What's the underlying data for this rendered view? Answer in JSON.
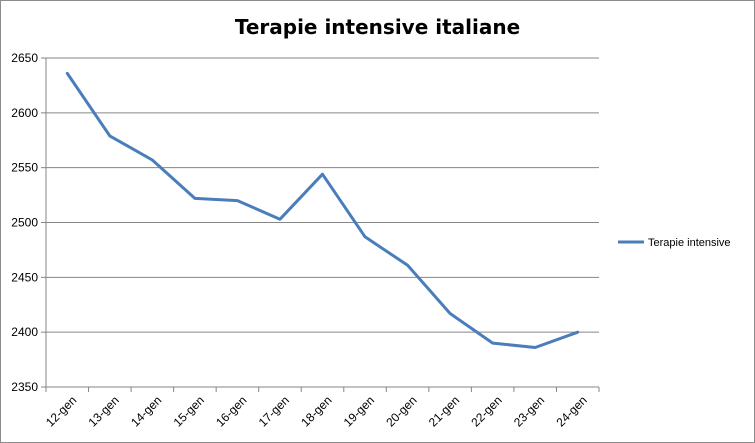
{
  "chart_data": {
    "type": "line",
    "title": "Terapie intensive italiane",
    "xlabel": "",
    "ylabel": "",
    "categories": [
      "12-gen",
      "13-gen",
      "14-gen",
      "15-gen",
      "16-gen",
      "17-gen",
      "18-gen",
      "19-gen",
      "20-gen",
      "21-gen",
      "22-gen",
      "23-gen",
      "24-gen"
    ],
    "series": [
      {
        "name": "Terapie intensive",
        "color": "#4a7ebb",
        "values": [
          2636,
          2579,
          2557,
          2522,
          2520,
          2503,
          2544,
          2487,
          2461,
          2417,
          2390,
          2386,
          2400
        ]
      }
    ],
    "ylim": [
      2350,
      2650
    ],
    "yticks": [
      "2350",
      "2400",
      "2450",
      "2500",
      "2550",
      "2600",
      "2650"
    ],
    "grid": true,
    "legend_position": "right"
  }
}
